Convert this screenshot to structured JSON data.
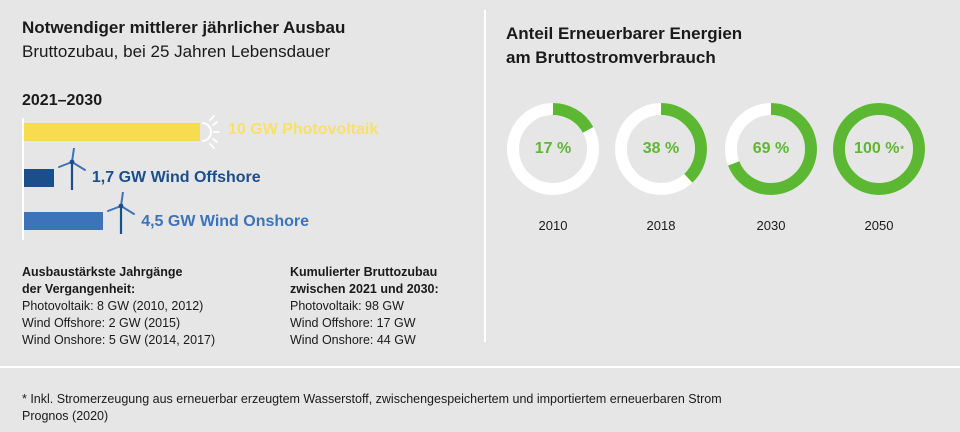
{
  "left": {
    "title": "Notwendiger mittlerer jährlicher Ausbau",
    "subtitle": "Bruttozubau, bei 25 Jahren Lebensdauer",
    "period": "2021–2030",
    "notes_left": {
      "heading_line1": "Ausbaustärkste Jahrgänge",
      "heading_line2": "der Vergangenheit:",
      "lines": [
        "Photovoltaik: 8 GW (2010, 2012)",
        "Wind Offshore: 2 GW (2015)",
        "Wind Onshore: 5 GW (2014, 2017)"
      ]
    },
    "notes_right": {
      "heading_line1": "Kumulierter Bruttozubau",
      "heading_line2": "zwischen 2021 und 2030:",
      "lines": [
        "Photovoltaik: 98 GW",
        "Wind Offshore: 17 GW",
        "Wind Onshore: 44 GW"
      ]
    }
  },
  "right": {
    "title_line1": "Anteil Erneuerbarer Energien",
    "title_line2": "am Bruttostromverbrauch"
  },
  "colors": {
    "photovoltaik": "#f6dc4e",
    "offshore": "#1c4f8a",
    "onshore": "#3d73b8",
    "donut_green": "#5cb832",
    "donut_track": "#ffffff",
    "donut_center": "#e6e6e6"
  },
  "icons": [
    "sun-icon",
    "wind-turbine-icon"
  ],
  "chart_data": [
    {
      "type": "bar",
      "orientation": "horizontal",
      "unit": "GW",
      "bars": [
        {
          "key": "photovoltaik",
          "label": "10 GW Photovoltaik",
          "value": 10
        },
        {
          "key": "offshore",
          "label": "1,7 GW Wind Offshore",
          "value": 1.7
        },
        {
          "key": "onshore",
          "label": "4,5 GW Wind Onshore",
          "value": 4.5
        }
      ]
    },
    {
      "type": "pie",
      "variant": "donut",
      "items": [
        {
          "year": "2010",
          "value": 17,
          "label": "17 %",
          "footnote_mark": ""
        },
        {
          "year": "2018",
          "value": 38,
          "label": "38 %",
          "footnote_mark": ""
        },
        {
          "year": "2030",
          "value": 69,
          "label": "69 %",
          "footnote_mark": ""
        },
        {
          "year": "2050",
          "value": 100,
          "label": "100 %",
          "footnote_mark": "*"
        }
      ]
    }
  ],
  "footnote": {
    "line1": "* Inkl. Stromerzeugung aus erneuerbar erzeugtem Wasserstoff, zwischengespeichertem und importiertem erneuerbaren Strom",
    "line2": "Prognos (2020)"
  }
}
